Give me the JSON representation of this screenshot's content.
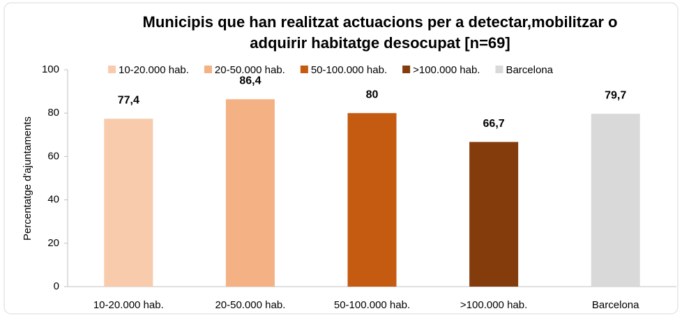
{
  "chart_data": {
    "type": "bar",
    "title": [
      "Municipis que han realitzat actuacions per a detectar,mobilitzar o",
      "adquirir habitatge desocupat [n=69]"
    ],
    "y_label": "Percentatge d'ajuntaments",
    "categories": [
      "10-20.000 hab.",
      "20-50.000 hab.",
      "50-100.000 hab.",
      ">100.000 hab.",
      "Barcelona"
    ],
    "values": [
      77.4,
      86.4,
      80,
      66.7,
      79.7
    ],
    "value_labels": [
      "77,4",
      "86,4",
      "80",
      "66,7",
      "79,7"
    ],
    "colors": [
      "#f8cbad",
      "#f4b183",
      "#c55a11",
      "#843c0c",
      "#d9d9d9"
    ],
    "ylim": [
      0,
      100
    ],
    "yticks": [
      0,
      20,
      40,
      60,
      80,
      100
    ],
    "grid": false,
    "legend": "top"
  }
}
